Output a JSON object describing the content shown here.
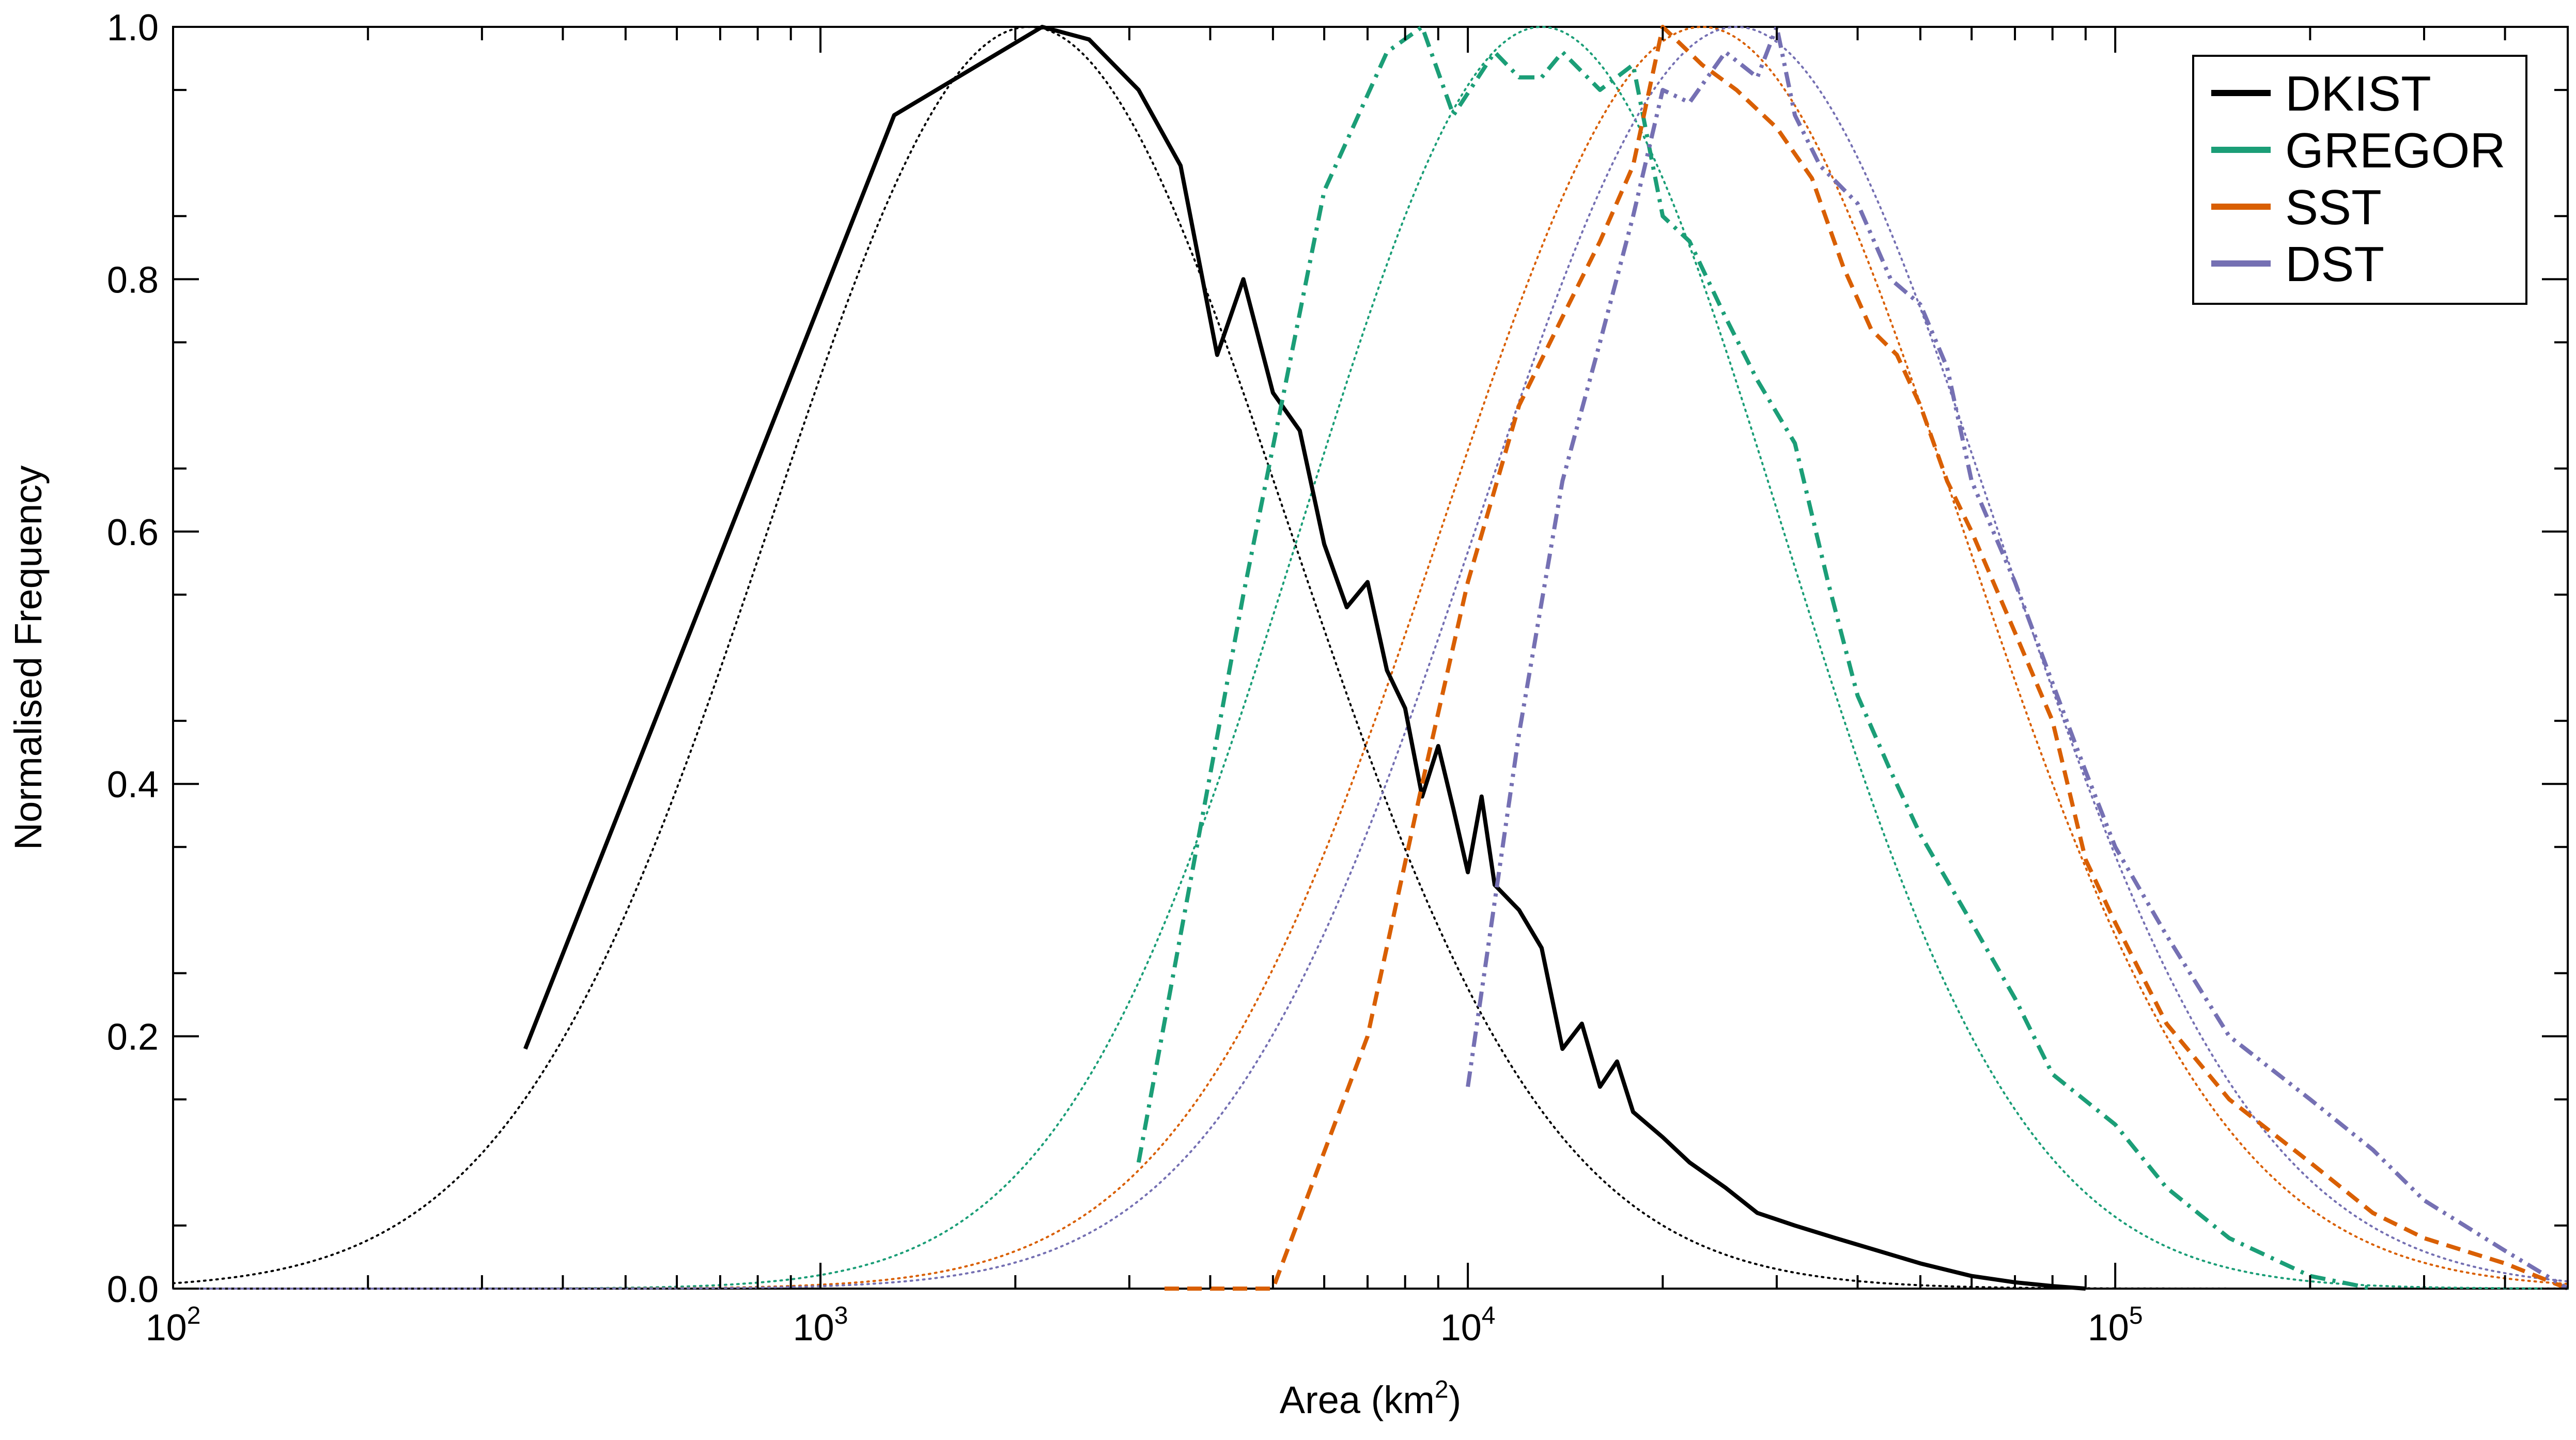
{
  "chart_data": {
    "type": "line",
    "title": "",
    "xlabel": "Area (km²)",
    "ylabel": "Normalised Frequency",
    "xscale": "log",
    "xlim": [
      100,
      500000
    ],
    "ylim": [
      0.0,
      1.0
    ],
    "x_ticks": [
      {
        "value": 100,
        "base": "10",
        "exp": "2"
      },
      {
        "value": 1000,
        "base": "10",
        "exp": "3"
      },
      {
        "value": 10000,
        "base": "10",
        "exp": "4"
      },
      {
        "value": 100000,
        "base": "10",
        "exp": "5"
      }
    ],
    "y_ticks": [
      {
        "value": 0.0,
        "label": "0.0"
      },
      {
        "value": 0.2,
        "label": "0.2"
      },
      {
        "value": 0.4,
        "label": "0.4"
      },
      {
        "value": 0.6,
        "label": "0.6"
      },
      {
        "value": 0.8,
        "label": "0.8"
      },
      {
        "value": 1.0,
        "label": "1.0"
      }
    ],
    "legend_position": "top-right",
    "series": [
      {
        "name": "DKIST",
        "color": "#000000",
        "dash": "solid",
        "x": [
          350,
          1300,
          2200,
          2600,
          3100,
          3600,
          4100,
          4500,
          5000,
          5500,
          6000,
          6500,
          7000,
          7500,
          8000,
          8500,
          9000,
          9500,
          10000,
          10500,
          11000,
          12000,
          13000,
          14000,
          15000,
          16000,
          17000,
          18000,
          20000,
          22000,
          25000,
          28000,
          32000,
          37000,
          43000,
          50000,
          60000,
          70000,
          80000,
          90000
        ],
        "y": [
          0.19,
          0.93,
          1.0,
          0.99,
          0.95,
          0.89,
          0.74,
          0.8,
          0.71,
          0.68,
          0.59,
          0.54,
          0.56,
          0.49,
          0.46,
          0.39,
          0.43,
          0.38,
          0.33,
          0.39,
          0.32,
          0.3,
          0.27,
          0.19,
          0.21,
          0.16,
          0.18,
          0.14,
          0.12,
          0.1,
          0.08,
          0.06,
          0.05,
          0.04,
          0.03,
          0.02,
          0.01,
          0.005,
          0.002,
          0.0
        ]
      },
      {
        "name": "GREGOR",
        "color": "#1b9e77",
        "dash": "dashdot",
        "x": [
          3100,
          4500,
          6000,
          7500,
          8500,
          9500,
          11000,
          12000,
          13000,
          14000,
          16000,
          18000,
          20000,
          22000,
          25000,
          28000,
          32000,
          36000,
          40000,
          45000,
          50000,
          60000,
          70000,
          80000,
          100000,
          120000,
          150000,
          200000,
          250000
        ],
        "y": [
          0.1,
          0.55,
          0.87,
          0.98,
          1.0,
          0.93,
          0.98,
          0.96,
          0.96,
          0.98,
          0.95,
          0.97,
          0.85,
          0.83,
          0.77,
          0.72,
          0.67,
          0.56,
          0.47,
          0.41,
          0.36,
          0.29,
          0.23,
          0.17,
          0.13,
          0.08,
          0.04,
          0.01,
          0.0
        ]
      },
      {
        "name": "SST",
        "color": "#d95f02",
        "dash": "dashed",
        "x": [
          3400,
          5000,
          7000,
          8500,
          10000,
          12000,
          14000,
          16000,
          18000,
          20000,
          23000,
          26000,
          30000,
          34000,
          38000,
          42000,
          46000,
          50000,
          55000,
          60000,
          70000,
          80000,
          90000,
          100000,
          120000,
          150000,
          200000,
          250000,
          300000,
          400000,
          500000
        ],
        "y": [
          0.0,
          0.0,
          0.2,
          0.4,
          0.56,
          0.7,
          0.77,
          0.83,
          0.89,
          1.0,
          0.97,
          0.95,
          0.92,
          0.88,
          0.81,
          0.76,
          0.74,
          0.7,
          0.64,
          0.6,
          0.52,
          0.45,
          0.34,
          0.29,
          0.21,
          0.15,
          0.1,
          0.06,
          0.04,
          0.02,
          0.0
        ]
      },
      {
        "name": "DST",
        "color": "#7570b3",
        "dash": "dashdotdot",
        "x": [
          10000,
          12000,
          14000,
          16000,
          18000,
          20000,
          22000,
          25000,
          28000,
          30000,
          32000,
          35000,
          40000,
          45000,
          50000,
          55000,
          60000,
          70000,
          80000,
          90000,
          100000,
          120000,
          150000,
          200000,
          250000,
          300000,
          400000,
          500000
        ],
        "y": [
          0.16,
          0.44,
          0.64,
          0.75,
          0.85,
          0.95,
          0.94,
          0.98,
          0.96,
          1.0,
          0.93,
          0.89,
          0.86,
          0.8,
          0.78,
          0.73,
          0.64,
          0.56,
          0.48,
          0.41,
          0.35,
          0.28,
          0.2,
          0.15,
          0.11,
          0.07,
          0.03,
          0.0
        ]
      }
    ],
    "fits": [
      {
        "name": "DKIST fit",
        "color": "#000000",
        "center": 2100,
        "sigma_log": 0.4
      },
      {
        "name": "GREGOR fit",
        "color": "#1b9e77",
        "center": 13000,
        "sigma_log": 0.37
      },
      {
        "name": "SST fit",
        "color": "#d95f02",
        "center": 23000,
        "sigma_log": 0.4
      },
      {
        "name": "DST fit",
        "color": "#7570b3",
        "center": 26000,
        "sigma_log": 0.4
      }
    ]
  }
}
